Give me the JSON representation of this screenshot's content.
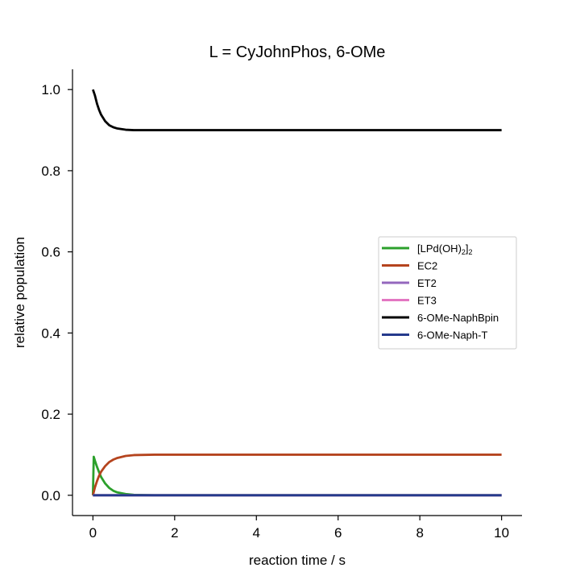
{
  "chart_data": {
    "type": "line",
    "title": "L = CyJohnPhos, 6-OMe",
    "xlabel": "reaction time / s",
    "ylabel": "relative population",
    "xlim": [
      -0.5,
      10.5
    ],
    "ylim": [
      -0.05,
      1.05
    ],
    "xticks": [
      0,
      2,
      4,
      6,
      8,
      10
    ],
    "xtick_labels": [
      "0",
      "2",
      "4",
      "6",
      "8",
      "10"
    ],
    "yticks": [
      0.0,
      0.2,
      0.4,
      0.6,
      0.8,
      1.0
    ],
    "ytick_labels": [
      "0.0",
      "0.2",
      "0.4",
      "0.6",
      "0.8",
      "1.0"
    ],
    "grid": false,
    "legend_position": "center-right",
    "series": [
      {
        "name": "[LPd(OH)2]2",
        "legend": {
          "base": "[LPd(OH)",
          "sub1": "2",
          "mid": "]",
          "sub2": "2"
        },
        "color": "#2ca02c",
        "x": [
          0,
          0.02,
          0.05,
          0.1,
          0.15,
          0.2,
          0.3,
          0.4,
          0.5,
          0.6,
          0.8,
          1.0,
          1.5,
          2,
          4,
          6,
          8,
          10
        ],
        "y": [
          0,
          0.095,
          0.085,
          0.07,
          0.057,
          0.045,
          0.029,
          0.018,
          0.011,
          0.007,
          0.003,
          0.001,
          0.0,
          0.0,
          0.0,
          0.0,
          0.0,
          0.0
        ]
      },
      {
        "name": "EC2",
        "color": "#b5441e",
        "x": [
          0,
          0.05,
          0.1,
          0.15,
          0.2,
          0.3,
          0.4,
          0.5,
          0.6,
          0.8,
          1.0,
          1.5,
          2,
          4,
          6,
          8,
          10
        ],
        "y": [
          0,
          0.02,
          0.035,
          0.048,
          0.058,
          0.072,
          0.082,
          0.088,
          0.092,
          0.097,
          0.099,
          0.1,
          0.1,
          0.1,
          0.1,
          0.1,
          0.1
        ]
      },
      {
        "name": "ET2",
        "color": "#9467bd",
        "x": [
          0,
          10
        ],
        "y": [
          0.0,
          0.0
        ]
      },
      {
        "name": "ET3",
        "color": "#e377c2",
        "x": [
          0,
          10
        ],
        "y": [
          0.0,
          0.0
        ]
      },
      {
        "name": "6-OMe-NaphBpin",
        "color": "#000000",
        "x": [
          0,
          0.05,
          0.1,
          0.15,
          0.2,
          0.3,
          0.4,
          0.5,
          0.6,
          0.8,
          1.0,
          1.5,
          2,
          4,
          6,
          8,
          10
        ],
        "y": [
          1.0,
          0.985,
          0.965,
          0.95,
          0.938,
          0.922,
          0.912,
          0.907,
          0.904,
          0.901,
          0.9,
          0.9,
          0.9,
          0.9,
          0.9,
          0.9,
          0.9
        ]
      },
      {
        "name": "6-OMe-Naph-T",
        "color": "#253a8c",
        "x": [
          0,
          10
        ],
        "y": [
          0.0,
          0.0
        ]
      }
    ]
  }
}
